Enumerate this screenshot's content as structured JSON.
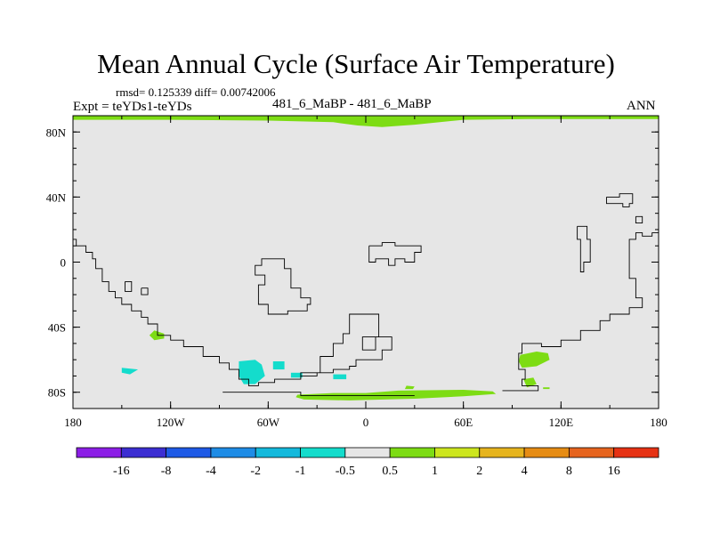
{
  "chart_data": {
    "type": "heatmap",
    "title": "Mean Annual Cycle (Surface Air Temperature)",
    "stats": "rmsd= 0.125339 diff= 0.00742006",
    "experiment": "Expt = teYDs1-teYDs",
    "center_label": "481_6_MaBP - 481_6_MaBP",
    "season": "ANN",
    "xlim": [
      -180,
      180
    ],
    "ylim": [
      -90,
      90
    ],
    "x_ticks": [
      {
        "value": -180,
        "label": "180"
      },
      {
        "value": -120,
        "label": "120W"
      },
      {
        "value": -60,
        "label": "60W"
      },
      {
        "value": 0,
        "label": "0"
      },
      {
        "value": 60,
        "label": "60E"
      },
      {
        "value": 120,
        "label": "120E"
      },
      {
        "value": 180,
        "label": "180"
      }
    ],
    "y_ticks": [
      {
        "value": 80,
        "label": "80N"
      },
      {
        "value": 40,
        "label": "40N"
      },
      {
        "value": 0,
        "label": "0"
      },
      {
        "value": -40,
        "label": "40S"
      },
      {
        "value": -80,
        "label": "80S"
      }
    ],
    "colorbar": {
      "colors": [
        "#8c1ee6",
        "#3c2ed2",
        "#1e5ae6",
        "#1e8ce6",
        "#14b9dc",
        "#14dccc",
        "#e6e6e6",
        "#7ddc14",
        "#cde61e",
        "#e6b41e",
        "#e68c14",
        "#e6641e",
        "#e63214"
      ],
      "labels": [
        "-16",
        "-8",
        "-4",
        "-2",
        "-1",
        "-0.5",
        "0.5",
        "1",
        "2",
        "4",
        "8",
        "16"
      ]
    },
    "background_color": "#e6e6e6",
    "anomaly_regions": [
      {
        "name": "arctic-band",
        "category": "1",
        "color": "#7ddc14",
        "outline": [
          [
            -180,
            90
          ],
          [
            180,
            90
          ],
          [
            180,
            88
          ],
          [
            100,
            88
          ],
          [
            60,
            87.5
          ],
          [
            30,
            84.5
          ],
          [
            10,
            83
          ],
          [
            -5,
            84
          ],
          [
            -20,
            86
          ],
          [
            -60,
            87
          ],
          [
            -120,
            87.5
          ],
          [
            -180,
            87.5
          ]
        ]
      },
      {
        "name": "antarctic-band",
        "category": "1",
        "color": "#7ddc14",
        "outline": [
          [
            -42,
            -81.5
          ],
          [
            -20,
            -80.5
          ],
          [
            0,
            -80.5
          ],
          [
            20,
            -79
          ],
          [
            60,
            -78.5
          ],
          [
            78,
            -79.5
          ],
          [
            80,
            -81
          ],
          [
            60,
            -82.5
          ],
          [
            30,
            -84
          ],
          [
            -10,
            -85
          ],
          [
            -38,
            -84.5
          ],
          [
            -43,
            -83
          ]
        ]
      },
      {
        "name": "south-pacific-patch",
        "category": "1",
        "color": "#7ddc14",
        "outline": [
          [
            -130,
            -42
          ],
          [
            -124,
            -44
          ],
          [
            -124,
            -47
          ],
          [
            -130,
            -48
          ],
          [
            -133,
            -45
          ]
        ]
      },
      {
        "name": "indian-ocean-patch",
        "category": "1",
        "color": "#7ddc14",
        "outline": [
          [
            95,
            -57
          ],
          [
            105,
            -55
          ],
          [
            112,
            -56
          ],
          [
            113,
            -60
          ],
          [
            105,
            -64
          ],
          [
            96,
            -65
          ],
          [
            94,
            -61
          ]
        ]
      },
      {
        "name": "antarctic-coast-patch",
        "category": "1",
        "color": "#7ddc14",
        "outline": [
          [
            97,
            -72
          ],
          [
            103,
            -71
          ],
          [
            105,
            -75
          ],
          [
            99,
            -77
          ]
        ]
      },
      {
        "name": "weddell-patch",
        "category": "1",
        "color": "#7ddc14",
        "outline": [
          [
            25,
            -76
          ],
          [
            30,
            -76.5
          ],
          [
            29,
            -78
          ],
          [
            24,
            -78
          ]
        ]
      },
      {
        "name": "small-patch-east",
        "category": "1",
        "color": "#7ddc14",
        "outline": [
          [
            109,
            -77
          ],
          [
            113,
            -77
          ],
          [
            113,
            -78
          ],
          [
            109,
            -78
          ]
        ]
      },
      {
        "name": "pacific-cool-patch",
        "category": "-0.5",
        "color": "#14dccc",
        "outline": [
          [
            -150,
            -65
          ],
          [
            -140,
            -66
          ],
          [
            -145,
            -69
          ],
          [
            -150,
            -68
          ]
        ]
      },
      {
        "name": "antarctic-peninsula-cool",
        "category": "-0.5",
        "color": "#14dccc",
        "outline": [
          [
            -78,
            -61
          ],
          [
            -68,
            -60
          ],
          [
            -64,
            -63
          ],
          [
            -62,
            -70
          ],
          [
            -68,
            -75
          ],
          [
            -75,
            -75
          ],
          [
            -78,
            -70
          ]
        ]
      },
      {
        "name": "drake-cool-1",
        "category": "-0.5",
        "color": "#14dccc",
        "outline": [
          [
            -57,
            -61
          ],
          [
            -50,
            -61
          ],
          [
            -50,
            -66
          ],
          [
            -57,
            -66
          ]
        ]
      },
      {
        "name": "drake-cool-2",
        "category": "-0.5",
        "color": "#14dccc",
        "outline": [
          [
            -46,
            -68
          ],
          [
            -39,
            -68
          ],
          [
            -39,
            -71
          ],
          [
            -46,
            -71
          ]
        ]
      },
      {
        "name": "drake-cool-3",
        "category": "-0.5",
        "color": "#14dccc",
        "outline": [
          [
            -20,
            -69
          ],
          [
            -12,
            -69
          ],
          [
            -12,
            -72
          ],
          [
            -20,
            -72
          ]
        ]
      }
    ],
    "contours": [
      {
        "name": "south-america-coast",
        "points": [
          [
            -180,
            14
          ],
          [
            -178,
            14
          ],
          [
            -178,
            10
          ],
          [
            -172,
            10
          ],
          [
            -172,
            6
          ],
          [
            -168,
            6
          ],
          [
            -168,
            2
          ],
          [
            -166,
            2
          ],
          [
            -166,
            -4
          ],
          [
            -162,
            -4
          ],
          [
            -162,
            -12
          ],
          [
            -158,
            -12
          ],
          [
            -158,
            -18
          ],
          [
            -154,
            -18
          ],
          [
            -154,
            -22
          ],
          [
            -150,
            -22
          ],
          [
            -150,
            -26
          ],
          [
            -144,
            -26
          ],
          [
            -144,
            -30
          ],
          [
            -138,
            -30
          ],
          [
            -138,
            -34
          ],
          [
            -134,
            -34
          ],
          [
            -134,
            -38
          ],
          [
            -128,
            -38
          ],
          [
            -128,
            -45
          ],
          [
            -120,
            -45
          ],
          [
            -120,
            -48
          ],
          [
            -112,
            -48
          ],
          [
            -112,
            -52
          ],
          [
            -100,
            -52
          ],
          [
            -100,
            -58
          ],
          [
            -90,
            -58
          ],
          [
            -90,
            -62
          ],
          [
            -84,
            -62
          ],
          [
            -84,
            -66
          ],
          [
            -78,
            -66
          ],
          [
            -78,
            -72
          ],
          [
            -72,
            -72
          ],
          [
            -72,
            -76
          ],
          [
            -66,
            -76
          ],
          [
            -66,
            -74
          ],
          [
            -56,
            -74
          ],
          [
            -56,
            -72
          ],
          [
            -40,
            -72
          ],
          [
            -40,
            -70
          ],
          [
            -30,
            -70
          ],
          [
            -30,
            -68
          ],
          [
            -20,
            -68
          ],
          [
            -20,
            -66
          ],
          [
            -10,
            -66
          ],
          [
            -10,
            -64
          ],
          [
            -6,
            -64
          ],
          [
            -6,
            -60
          ],
          [
            10,
            -60
          ],
          [
            10,
            -54
          ],
          [
            16,
            -54
          ],
          [
            16,
            -46
          ],
          [
            6,
            -46
          ],
          [
            6,
            -54
          ],
          [
            -2,
            -54
          ],
          [
            -2,
            -46
          ],
          [
            8,
            -46
          ],
          [
            8,
            -32
          ],
          [
            -10,
            -32
          ],
          [
            -10,
            -44
          ],
          [
            -14,
            -44
          ],
          [
            -14,
            -50
          ],
          [
            -20,
            -50
          ],
          [
            -20,
            -58
          ],
          [
            -28,
            -58
          ],
          [
            -28,
            -68
          ],
          [
            -40,
            -68
          ],
          [
            -40,
            -70
          ]
        ]
      },
      {
        "name": "small-island-1",
        "points": [
          [
            -148,
            -12
          ],
          [
            -144,
            -12
          ],
          [
            -144,
            -18
          ],
          [
            -148,
            -18
          ],
          [
            -148,
            -12
          ]
        ]
      },
      {
        "name": "small-island-2",
        "points": [
          [
            -138,
            -16
          ],
          [
            -134,
            -16
          ],
          [
            -134,
            -20
          ],
          [
            -138,
            -20
          ],
          [
            -138,
            -16
          ]
        ]
      },
      {
        "name": "central-landmass",
        "points": [
          [
            -60,
            2
          ],
          [
            -50,
            2
          ],
          [
            -50,
            -4
          ],
          [
            -46,
            -4
          ],
          [
            -46,
            -16
          ],
          [
            -40,
            -16
          ],
          [
            -40,
            -22
          ],
          [
            -34,
            -22
          ],
          [
            -34,
            -26
          ],
          [
            -36,
            -26
          ],
          [
            -36,
            -30
          ],
          [
            -48,
            -30
          ],
          [
            -48,
            -32
          ],
          [
            -60,
            -32
          ],
          [
            -60,
            -26
          ],
          [
            -66,
            -26
          ],
          [
            -66,
            -14
          ],
          [
            -62,
            -14
          ],
          [
            -62,
            -8
          ],
          [
            -68,
            -8
          ],
          [
            -68,
            -2
          ],
          [
            -64,
            -2
          ],
          [
            -64,
            2
          ],
          [
            -60,
            2
          ]
        ]
      },
      {
        "name": "equatorial-strip",
        "points": [
          [
            2,
            10
          ],
          [
            10,
            10
          ],
          [
            10,
            12
          ],
          [
            18,
            12
          ],
          [
            18,
            10
          ],
          [
            34,
            10
          ],
          [
            34,
            6
          ],
          [
            30,
            6
          ],
          [
            30,
            0
          ],
          [
            24,
            0
          ],
          [
            24,
            2
          ],
          [
            18,
            2
          ],
          [
            18,
            -2
          ],
          [
            14,
            -2
          ],
          [
            14,
            2
          ],
          [
            6,
            2
          ],
          [
            6,
            0
          ],
          [
            2,
            0
          ],
          [
            2,
            10
          ]
        ]
      },
      {
        "name": "asia-outline",
        "points": [
          [
            148,
            40
          ],
          [
            156,
            40
          ],
          [
            156,
            42
          ],
          [
            164,
            42
          ],
          [
            164,
            36
          ],
          [
            162,
            36
          ],
          [
            162,
            34
          ],
          [
            158,
            34
          ],
          [
            158,
            36
          ],
          [
            148,
            36
          ],
          [
            148,
            40
          ]
        ]
      },
      {
        "name": "east-block",
        "points": [
          [
            166,
            28
          ],
          [
            170,
            28
          ],
          [
            170,
            24
          ],
          [
            166,
            24
          ],
          [
            166,
            28
          ]
        ]
      },
      {
        "name": "island-chain",
        "points": [
          [
            130,
            22
          ],
          [
            136,
            22
          ],
          [
            136,
            14
          ],
          [
            138,
            14
          ],
          [
            138,
            0
          ],
          [
            134,
            0
          ],
          [
            134,
            -6
          ],
          [
            132,
            -6
          ],
          [
            132,
            14
          ],
          [
            130,
            14
          ],
          [
            130,
            22
          ]
        ]
      },
      {
        "name": "australia-coast",
        "points": [
          [
            180,
            18
          ],
          [
            176,
            18
          ],
          [
            176,
            16
          ],
          [
            170,
            16
          ],
          [
            170,
            18
          ],
          [
            166,
            18
          ],
          [
            166,
            14
          ],
          [
            162,
            14
          ],
          [
            162,
            -10
          ],
          [
            166,
            -10
          ],
          [
            166,
            -22
          ],
          [
            170,
            -22
          ],
          [
            170,
            -28
          ],
          [
            162,
            -28
          ],
          [
            162,
            -32
          ],
          [
            150,
            -32
          ],
          [
            150,
            -36
          ],
          [
            144,
            -36
          ],
          [
            144,
            -42
          ],
          [
            132,
            -42
          ],
          [
            132,
            -48
          ],
          [
            120,
            -48
          ],
          [
            120,
            -52
          ],
          [
            108,
            -52
          ],
          [
            108,
            -50
          ],
          [
            96,
            -50
          ],
          [
            96,
            -56
          ],
          [
            94,
            -56
          ],
          [
            94,
            -66
          ],
          [
            98,
            -66
          ],
          [
            98,
            -72
          ],
          [
            96,
            -72
          ],
          [
            96,
            -76
          ],
          [
            106,
            -76
          ],
          [
            106,
            -79
          ],
          [
            84,
            -79
          ]
        ]
      },
      {
        "name": "antarctic-shelf-line",
        "points": [
          [
            -88,
            -80
          ],
          [
            -40,
            -80
          ],
          [
            -40,
            -82
          ],
          [
            30,
            -82
          ]
        ]
      }
    ]
  }
}
